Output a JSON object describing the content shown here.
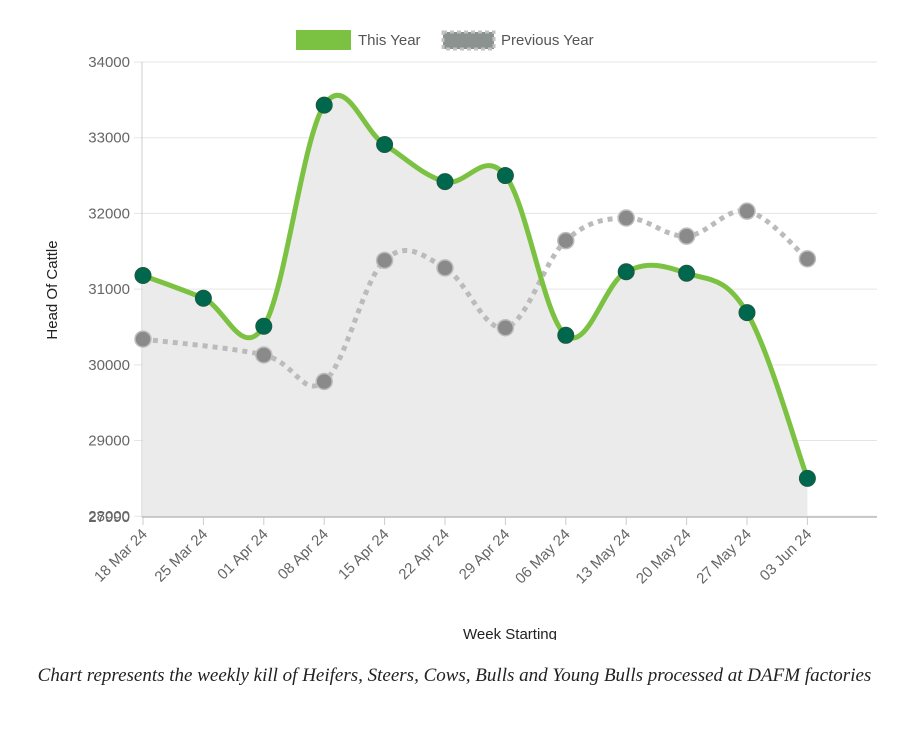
{
  "chart_data": {
    "type": "line",
    "xlabel": "Week Starting",
    "ylabel": "Head Of Cattle",
    "categories": [
      "18 Mar 24",
      "25 Mar 24",
      "01 Apr 24",
      "08 Apr 24",
      "15 Apr 24",
      "22 Apr 24",
      "29 Apr 24",
      "06 May 24",
      "13 May 24",
      "20 May 24",
      "27 May 24",
      "03 Jun 24"
    ],
    "ylim": [
      27990,
      34000
    ],
    "yticks": [
      34000,
      33000,
      32000,
      31000,
      30000,
      29000,
      28000,
      27990
    ],
    "ytick_labels": [
      "34000",
      "33000",
      "32000",
      "31000",
      "30000",
      "29000",
      "28000",
      "27990"
    ],
    "grid": true,
    "legend": "top-center",
    "series": [
      {
        "name": "This Year",
        "style": "solid",
        "fill": true,
        "line_color": "#7cc242",
        "point_color": "#00674f",
        "fill_color": "#ebebeb",
        "values": [
          31180,
          30880,
          30510,
          33430,
          32910,
          32420,
          32500,
          30390,
          31230,
          31210,
          30690,
          28500
        ]
      },
      {
        "name": "Previous Year",
        "style": "dotted",
        "fill": false,
        "line_color": "#bbbbbb",
        "point_color": "#8a8a8a",
        "values": [
          30340,
          null,
          30130,
          29780,
          31380,
          31280,
          30490,
          31640,
          31940,
          31700,
          32030,
          31400
        ]
      }
    ]
  },
  "caption": "Chart represents the weekly kill of Heifers, Steers, Cows, Bulls and Young Bulls processed at DAFM factories"
}
